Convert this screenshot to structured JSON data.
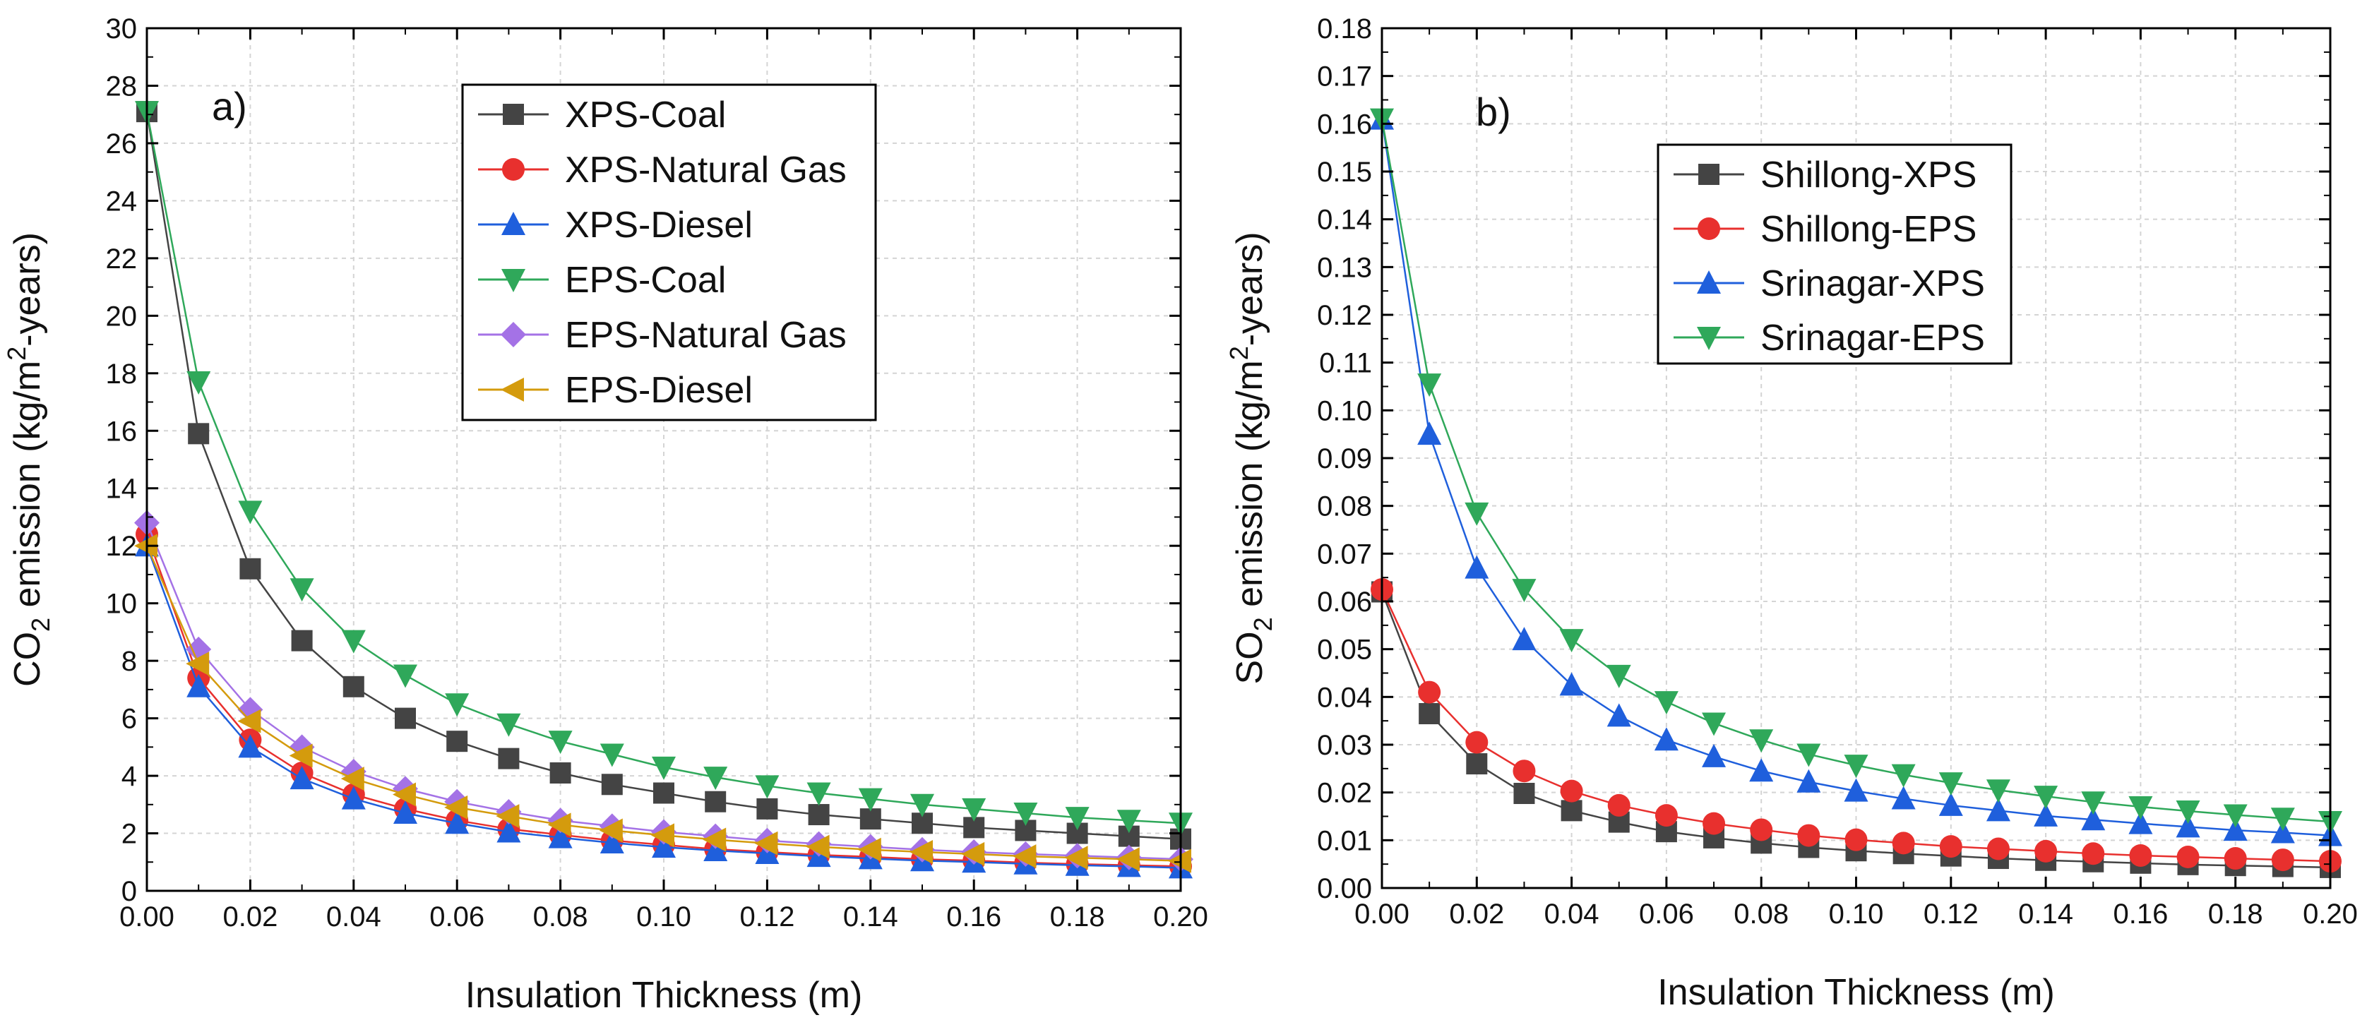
{
  "chart_data": [
    {
      "type": "line",
      "panel_label": "a)",
      "xlabel": "Insulation Thickness (m)",
      "ylabel": {
        "pre": "CO",
        "sub": "2",
        "mid": " emission (kg/m",
        "sup": "2",
        "post": "-years)"
      },
      "xlim": [
        0,
        0.2
      ],
      "ylim": [
        0,
        30
      ],
      "xticks": [
        "0.00",
        "0.02",
        "0.04",
        "0.06",
        "0.08",
        "0.10",
        "0.12",
        "0.14",
        "0.16",
        "0.18",
        "0.20"
      ],
      "yticks": [
        "0",
        "2",
        "4",
        "6",
        "8",
        "10",
        "12",
        "14",
        "16",
        "18",
        "20",
        "22",
        "24",
        "26",
        "28",
        "30"
      ],
      "grid": true,
      "legend_position": "top-right",
      "x": [
        0,
        0.01,
        0.02,
        0.03,
        0.04,
        0.05,
        0.06,
        0.07,
        0.08,
        0.09,
        0.1,
        0.11,
        0.12,
        0.13,
        0.14,
        0.15,
        0.16,
        0.17,
        0.18,
        0.19,
        0.2
      ],
      "series": [
        {
          "name": "XPS-Coal",
          "color": "#444444",
          "marker": "square",
          "values": [
            27.1,
            15.9,
            11.2,
            8.7,
            7.1,
            6.0,
            5.2,
            4.6,
            4.1,
            3.7,
            3.4,
            3.1,
            2.85,
            2.65,
            2.5,
            2.35,
            2.2,
            2.1,
            2.0,
            1.9,
            1.8
          ]
        },
        {
          "name": "XPS-Natural Gas",
          "color": "#e8302e",
          "marker": "circle",
          "values": [
            12.4,
            7.4,
            5.25,
            4.1,
            3.35,
            2.85,
            2.45,
            2.15,
            1.95,
            1.75,
            1.6,
            1.45,
            1.35,
            1.25,
            1.18,
            1.1,
            1.05,
            0.98,
            0.93,
            0.89,
            0.85
          ]
        },
        {
          "name": "XPS-Diesel",
          "color": "#1f5fdc",
          "marker": "triangle-up",
          "values": [
            12.0,
            7.1,
            5.0,
            3.9,
            3.2,
            2.7,
            2.35,
            2.05,
            1.85,
            1.67,
            1.52,
            1.4,
            1.3,
            1.2,
            1.12,
            1.05,
            1.0,
            0.94,
            0.89,
            0.85,
            0.8
          ]
        },
        {
          "name": "EPS-Coal",
          "color": "#2fa85a",
          "marker": "triangle-down",
          "values": [
            27.1,
            17.7,
            13.2,
            10.5,
            8.7,
            7.5,
            6.5,
            5.8,
            5.2,
            4.75,
            4.3,
            3.95,
            3.65,
            3.4,
            3.2,
            3.0,
            2.85,
            2.7,
            2.55,
            2.45,
            2.35
          ]
        },
        {
          "name": "EPS-Natural Gas",
          "color": "#a472e6",
          "marker": "diamond",
          "values": [
            12.8,
            8.4,
            6.3,
            5.0,
            4.15,
            3.55,
            3.1,
            2.75,
            2.45,
            2.25,
            2.05,
            1.9,
            1.75,
            1.63,
            1.53,
            1.43,
            1.35,
            1.28,
            1.22,
            1.16,
            1.1
          ]
        },
        {
          "name": "EPS-Diesel",
          "color": "#d49b0d",
          "marker": "triangle-left",
          "values": [
            12.0,
            7.9,
            5.9,
            4.7,
            3.9,
            3.35,
            2.9,
            2.6,
            2.3,
            2.1,
            1.93,
            1.78,
            1.65,
            1.53,
            1.43,
            1.35,
            1.28,
            1.2,
            1.15,
            1.1,
            1.04
          ]
        }
      ]
    },
    {
      "type": "line",
      "panel_label": "b)",
      "xlabel": "Insulation Thickness (m)",
      "ylabel": {
        "pre": "SO",
        "sub": "2",
        "mid": " emission (kg/m",
        "sup": "2",
        "post": "-years)"
      },
      "xlim": [
        0,
        0.2
      ],
      "ylim": [
        0,
        0.18
      ],
      "xticks": [
        "0.00",
        "0.02",
        "0.04",
        "0.06",
        "0.08",
        "0.10",
        "0.12",
        "0.14",
        "0.16",
        "0.18",
        "0.20"
      ],
      "yticks": [
        "0.00",
        "0.01",
        "0.02",
        "0.03",
        "0.04",
        "0.05",
        "0.06",
        "0.07",
        "0.08",
        "0.09",
        "0.10",
        "0.11",
        "0.12",
        "0.13",
        "0.14",
        "0.15",
        "0.16",
        "0.17",
        "0.18"
      ],
      "grid": true,
      "legend_position": "top-right",
      "x": [
        0,
        0.01,
        0.02,
        0.03,
        0.04,
        0.05,
        0.06,
        0.07,
        0.08,
        0.09,
        0.1,
        0.11,
        0.12,
        0.13,
        0.14,
        0.15,
        0.16,
        0.17,
        0.18,
        0.19,
        0.2
      ],
      "series": [
        {
          "name": "Shillong-XPS",
          "color": "#444444",
          "marker": "square",
          "values": [
            0.062,
            0.0365,
            0.026,
            0.0198,
            0.0162,
            0.0138,
            0.0118,
            0.0105,
            0.0094,
            0.0085,
            0.0078,
            0.0072,
            0.0067,
            0.0062,
            0.0058,
            0.0055,
            0.0052,
            0.0049,
            0.0047,
            0.0045,
            0.0043
          ]
        },
        {
          "name": "Shillong-EPS",
          "color": "#e8302e",
          "marker": "circle",
          "values": [
            0.0625,
            0.041,
            0.0305,
            0.0245,
            0.0203,
            0.0173,
            0.0152,
            0.0135,
            0.0122,
            0.011,
            0.0101,
            0.0094,
            0.0087,
            0.0082,
            0.0077,
            0.0072,
            0.0068,
            0.0065,
            0.0062,
            0.0059,
            0.0056
          ]
        },
        {
          "name": "Srinagar-XPS",
          "color": "#1f5fdc",
          "marker": "triangle-up",
          "values": [
            0.161,
            0.095,
            0.067,
            0.052,
            0.0425,
            0.036,
            0.031,
            0.0275,
            0.0245,
            0.0222,
            0.0203,
            0.0187,
            0.0173,
            0.0162,
            0.0151,
            0.0143,
            0.0135,
            0.0128,
            0.0121,
            0.0116,
            0.011
          ]
        },
        {
          "name": "Srinagar-EPS",
          "color": "#2fa85a",
          "marker": "triangle-down",
          "values": [
            0.161,
            0.1055,
            0.0785,
            0.0625,
            0.052,
            0.0445,
            0.039,
            0.0345,
            0.031,
            0.028,
            0.0257,
            0.0237,
            0.022,
            0.0205,
            0.0192,
            0.018,
            0.017,
            0.0161,
            0.0153,
            0.0146,
            0.0139
          ]
        }
      ]
    }
  ]
}
